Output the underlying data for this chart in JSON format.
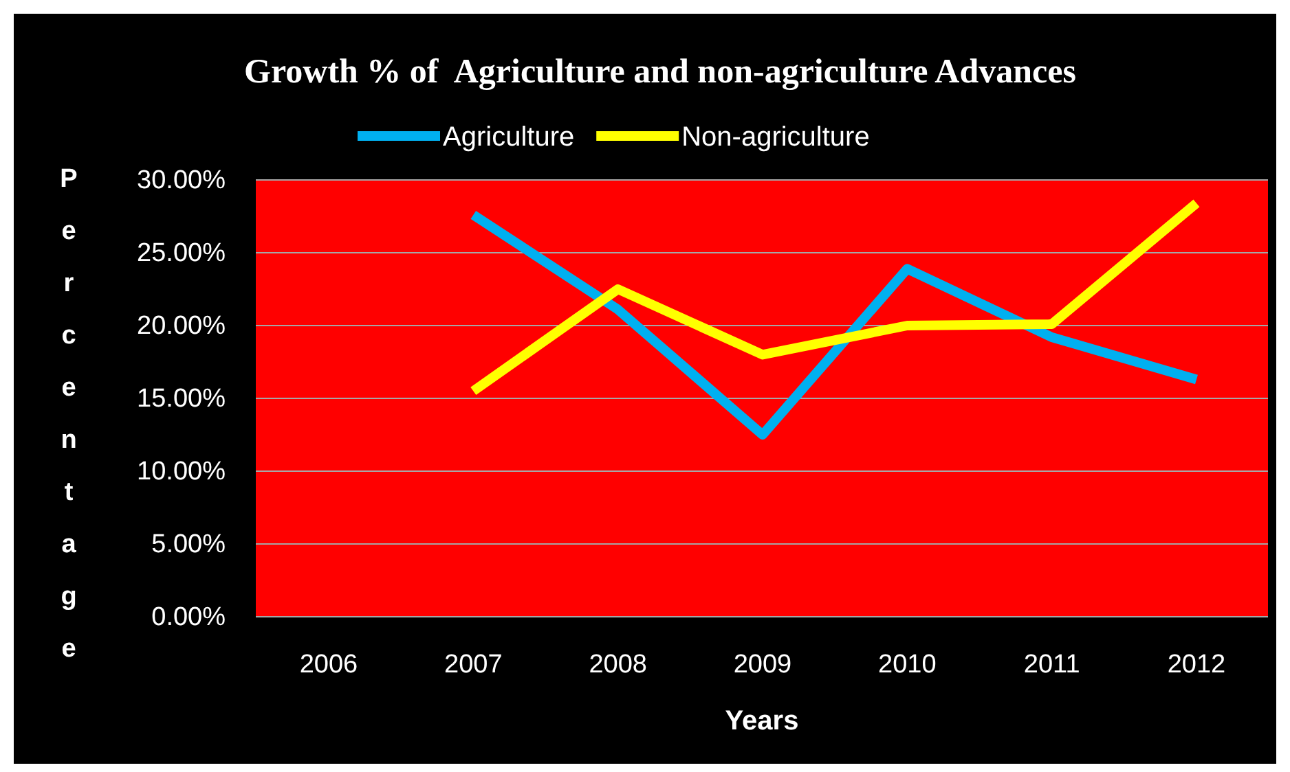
{
  "chart_data": {
    "type": "line",
    "title": "Growth % of  Agriculture and non-agriculture Advances",
    "xlabel": "Years",
    "ylabel": "Percentage",
    "categories": [
      "2006",
      "2007",
      "2008",
      "2009",
      "2010",
      "2011",
      "2012"
    ],
    "series": [
      {
        "name": "Agriculture",
        "color": "#00b0f0",
        "values": [
          null,
          27.6,
          21.1,
          12.5,
          23.9,
          19.2,
          16.3
        ]
      },
      {
        "name": "Non-agriculture",
        "color": "#ffff00",
        "values": [
          null,
          15.5,
          22.5,
          18.0,
          20.0,
          20.1,
          28.4
        ]
      }
    ],
    "ylim": [
      0,
      30
    ],
    "yticks": [
      {
        "value": 0,
        "label": "0.00%"
      },
      {
        "value": 5,
        "label": "5.00%"
      },
      {
        "value": 10,
        "label": "10.00%"
      },
      {
        "value": 15,
        "label": "15.00%"
      },
      {
        "value": 20,
        "label": "20.00%"
      },
      {
        "value": 25,
        "label": "25.00%"
      },
      {
        "value": 30,
        "label": "30.00%"
      }
    ],
    "grid": "y",
    "legend": "top",
    "marker": "none",
    "line_style": "solid"
  }
}
